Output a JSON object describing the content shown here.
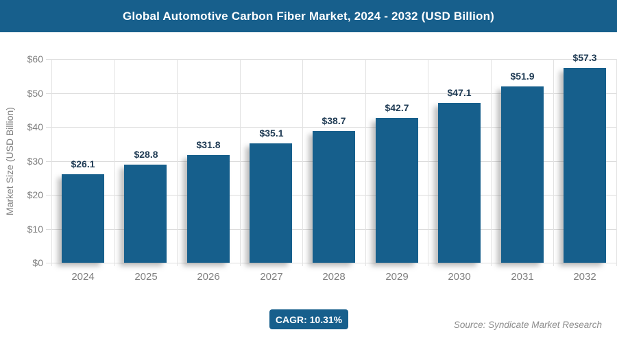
{
  "header": {
    "title": "Global Automotive Carbon Fiber Market, 2024 - 2032 (USD Billion)"
  },
  "chart_data": {
    "type": "bar",
    "title": "Global Automotive Carbon Fiber Market, 2024 - 2032 (USD Billion)",
    "categories": [
      "2024",
      "2025",
      "2026",
      "2027",
      "2028",
      "2029",
      "2030",
      "2031",
      "2032"
    ],
    "values": [
      26.1,
      28.8,
      31.8,
      35.1,
      38.7,
      42.7,
      47.1,
      51.9,
      57.3
    ],
    "value_labels": [
      "$26.1",
      "$28.8",
      "$31.8",
      "$35.1",
      "$38.7",
      "$42.7",
      "$47.1",
      "$51.9",
      "$57.3"
    ],
    "xlabel": "",
    "ylabel": "Market Size (USD Billion)",
    "ylim": [
      0,
      60
    ],
    "ytick_step": 10,
    "ytick_labels": [
      "$0",
      "$10",
      "$20",
      "$30",
      "$40",
      "$50",
      "$60"
    ],
    "grid": true,
    "legend": "none"
  },
  "footer": {
    "cagr_label": "CAGR: 10.31%",
    "source": "Source: Syndicate Market Research"
  },
  "colors": {
    "header_bg": "#175F8C",
    "bar": "#165F8C",
    "value_label": "#1F3B54",
    "axis_text": "#7F7F7F",
    "gridline": "#DCDCDC",
    "badge_bg": "#175F8C",
    "source_text": "#8C8C8C"
  }
}
